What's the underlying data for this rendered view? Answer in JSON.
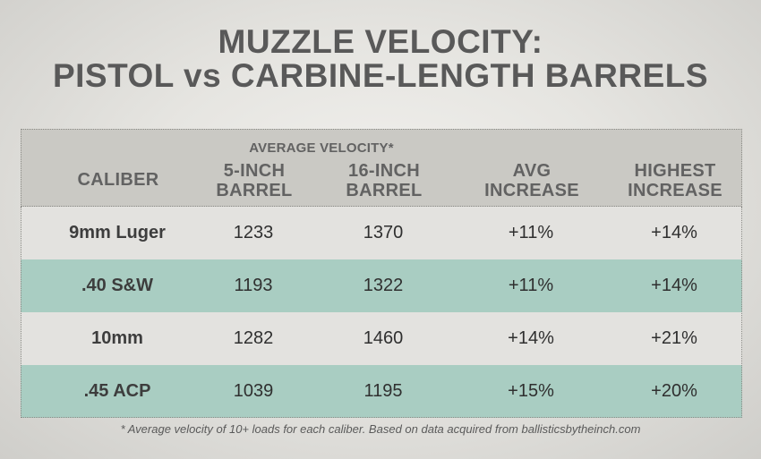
{
  "title": {
    "line1": "MUZZLE VELOCITY:",
    "line2": "PISTOL vs CARBINE-LENGTH BARRELS"
  },
  "header": {
    "group_label": "AVERAGE VELOCITY*",
    "columns": [
      {
        "line1": "CALIBER",
        "line2": ""
      },
      {
        "line1": "5-INCH",
        "line2": "BARREL"
      },
      {
        "line1": "16-INCH",
        "line2": "BARREL"
      },
      {
        "line1": "AVG",
        "line2": "INCREASE"
      },
      {
        "line1": "HIGHEST",
        "line2": "INCREASE"
      }
    ]
  },
  "rows": [
    {
      "caliber": "9mm Luger",
      "v5": "1233",
      "v16": "1370",
      "avg": "+11%",
      "high": "+14%"
    },
    {
      "caliber": ".40 S&W",
      "v5": "1193",
      "v16": "1322",
      "avg": "+11%",
      "high": "+14%"
    },
    {
      "caliber": "10mm",
      "v5": "1282",
      "v16": "1460",
      "avg": "+14%",
      "high": "+21%"
    },
    {
      "caliber": ".45 ACP",
      "v5": "1039",
      "v16": "1195",
      "avg": "+15%",
      "high": "+20%"
    }
  ],
  "footnote": "* Average velocity of 10+ loads for each caliber. Based on data acquired from ballisticsbytheinch.com",
  "colors": {
    "title": "#595959",
    "header_bg": "#cac9c4",
    "row_light": "#e3e2df",
    "row_teal": "#a9cdc2"
  },
  "chart_data": {
    "type": "table",
    "title": "MUZZLE VELOCITY: PISTOL vs CARBINE-LENGTH BARRELS",
    "columns": [
      "CALIBER",
      "5-INCH BARREL",
      "16-INCH BARREL",
      "AVG INCREASE",
      "HIGHEST INCREASE"
    ],
    "column_group": {
      "label": "AVERAGE VELOCITY*",
      "spans": [
        "5-INCH BARREL",
        "16-INCH BARREL"
      ]
    },
    "rows": [
      [
        "9mm Luger",
        1233,
        1370,
        "+11%",
        "+14%"
      ],
      [
        ".40 S&W",
        1193,
        1322,
        "+11%",
        "+14%"
      ],
      [
        "10mm",
        1282,
        1460,
        "+14%",
        "+21%"
      ],
      [
        ".45 ACP",
        1039,
        1195,
        "+15%",
        "+20%"
      ]
    ]
  }
}
